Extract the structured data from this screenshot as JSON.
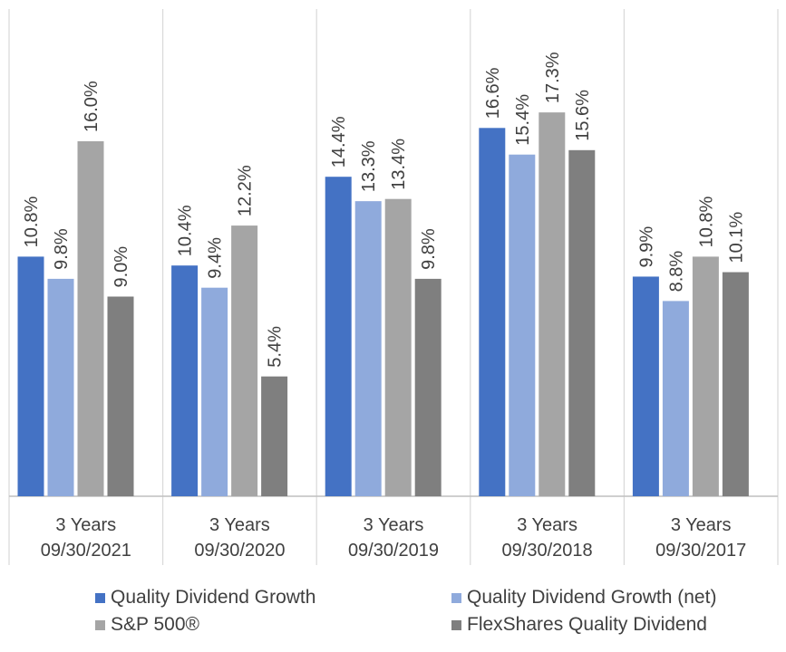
{
  "chart_data": {
    "type": "bar",
    "categories": [
      [
        "3 Years",
        "09/30/2021"
      ],
      [
        "3 Years",
        "09/30/2020"
      ],
      [
        "3 Years",
        "09/30/2019"
      ],
      [
        "3 Years",
        "09/30/2018"
      ],
      [
        "3 Years",
        "09/30/2017"
      ]
    ],
    "series": [
      {
        "name": "Quality Dividend Growth",
        "color": "#4472C4",
        "values": [
          10.8,
          10.4,
          14.4,
          16.6,
          9.9
        ],
        "labels": [
          "10.8%",
          "10.4%",
          "14.4%",
          "16.6%",
          "9.9%"
        ]
      },
      {
        "name": "Quality Dividend Growth (net)",
        "color": "#8FAADC",
        "values": [
          9.8,
          9.4,
          13.3,
          15.4,
          8.8
        ],
        "labels": [
          "9.8%",
          "9.4%",
          "13.3%",
          "15.4%",
          "8.8%"
        ]
      },
      {
        "name": "S&P 500®",
        "color": "#A5A5A5",
        "values": [
          16.0,
          12.2,
          13.4,
          17.3,
          10.8
        ],
        "labels": [
          "16.0%",
          "12.2%",
          "13.4%",
          "17.3%",
          "10.8%"
        ]
      },
      {
        "name": "FlexShares Quality Dividend",
        "color": "#7F7F7F",
        "values": [
          9.0,
          5.4,
          9.8,
          15.6,
          10.1
        ],
        "labels": [
          "9.0%",
          "5.4%",
          "9.8%",
          "15.6%",
          "10.1%"
        ]
      }
    ],
    "ylim": [
      0,
      20
    ],
    "grid": false,
    "legend_position": "bottom"
  }
}
